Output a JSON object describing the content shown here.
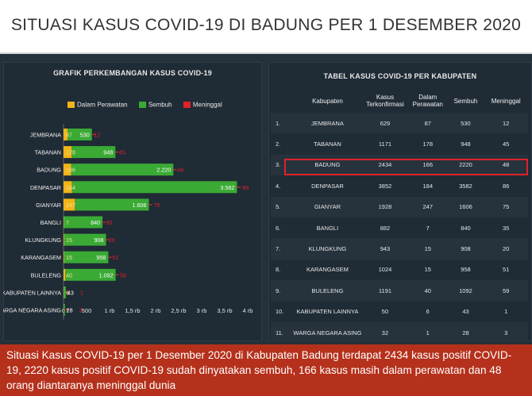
{
  "header": {
    "title": "SITUASI KASUS COVID-19 DI BADUNG PER 1 DESEMBER 2020"
  },
  "chart_panel": {
    "title": "GRAFIK PERKEMBANGAN KASUS COVID-19"
  },
  "table_panel": {
    "title": "TABEL KASUS COVID-19 PER KABUPATEN"
  },
  "colors": {
    "dalam_perawatan": "#f2b418",
    "sembuh": "#3aaa35",
    "meninggal": "#e0222a"
  },
  "chart_data": {
    "type": "bar",
    "orientation": "horizontal",
    "stacked": true,
    "title": "GRAFIK PERKEMBANGAN KASUS COVID-19",
    "categories": [
      "JEMBRANA",
      "TABANAN",
      "BADUNG",
      "DENPASAR",
      "GIANYAR",
      "BANGLI",
      "KLUNGKUNG",
      "KARANGASEM",
      "BULELENG",
      "KABUPATEN LAINNYA",
      "WARGA NEGARA ASING"
    ],
    "series": [
      {
        "name": "Dalam Perawatan",
        "values": [
          87,
          178,
          166,
          184,
          247,
          7,
          15,
          15,
          40,
          6,
          1
        ],
        "labels": [
          "87",
          "178",
          "166",
          "184",
          "247",
          "7",
          "15",
          "15",
          "40",
          "6",
          "1"
        ]
      },
      {
        "name": "Sembuh",
        "values": [
          530,
          948,
          2220,
          3582,
          1606,
          840,
          908,
          958,
          1092,
          43,
          28
        ],
        "labels": [
          "530",
          "948",
          "2.220",
          "3.582",
          "1.606",
          "840",
          "908",
          "958",
          "1.092",
          "43",
          "28"
        ]
      },
      {
        "name": "Meninggal",
        "values": [
          12,
          45,
          48,
          86,
          75,
          35,
          20,
          51,
          59,
          1,
          3
        ],
        "labels": [
          "12",
          "45",
          "48",
          "86",
          "75",
          "35",
          "20",
          "51",
          "59",
          "1",
          "3"
        ]
      }
    ],
    "xlim": [
      0,
      4000
    ],
    "ticks": [
      0,
      500,
      1000,
      1500,
      2000,
      2500,
      3000,
      3500,
      4000
    ],
    "tick_labels": [
      "0",
      "500",
      "1 rb",
      "1,5 rb",
      "2 rb",
      "2,5 rb",
      "3 rb",
      "3,5 rb",
      "4 rb"
    ],
    "legend": "top"
  },
  "table": {
    "columns": [
      "",
      "Kabupaten",
      "Kasus Terkonfirmasi",
      "Dalam Perawatan",
      "Sembuh",
      "Meninggal"
    ],
    "rows": [
      [
        "1.",
        "JEMBRANA",
        "629",
        "87",
        "530",
        "12"
      ],
      [
        "2.",
        "TABANAN",
        "1171",
        "178",
        "948",
        "45"
      ],
      [
        "3.",
        "BADUNG",
        "2434",
        "166",
        "2220",
        "48"
      ],
      [
        "4.",
        "DENPASAR",
        "3852",
        "184",
        "3582",
        "86"
      ],
      [
        "5.",
        "GIANYAR",
        "1928",
        "247",
        "1606",
        "75"
      ],
      [
        "6.",
        "BANGLI",
        "882",
        "7",
        "840",
        "35"
      ],
      [
        "7.",
        "KLUNGKUNG",
        "943",
        "15",
        "908",
        "20"
      ],
      [
        "8.",
        "KARANGASEM",
        "1024",
        "15",
        "958",
        "51"
      ],
      [
        "9.",
        "BULELENG",
        "1191",
        "40",
        "1092",
        "59"
      ],
      [
        "10.",
        "KABUPATEN LAINNYA",
        "50",
        "6",
        "43",
        "1"
      ],
      [
        "11.",
        "WARGA NEGARA ASING",
        "32",
        "1",
        "28",
        "3"
      ]
    ]
  },
  "caption": {
    "text": "Situasi Kasus COVID-19 per 1 Desember 2020 di Kabupaten Badung terdapat 2434 kasus positif COVID-19, 2220 kasus positif COVID-19 sudah dinyatakan sembuh, 166 kasus masih dalam perawatan dan 48 orang diantaranya meninggal dunia"
  }
}
